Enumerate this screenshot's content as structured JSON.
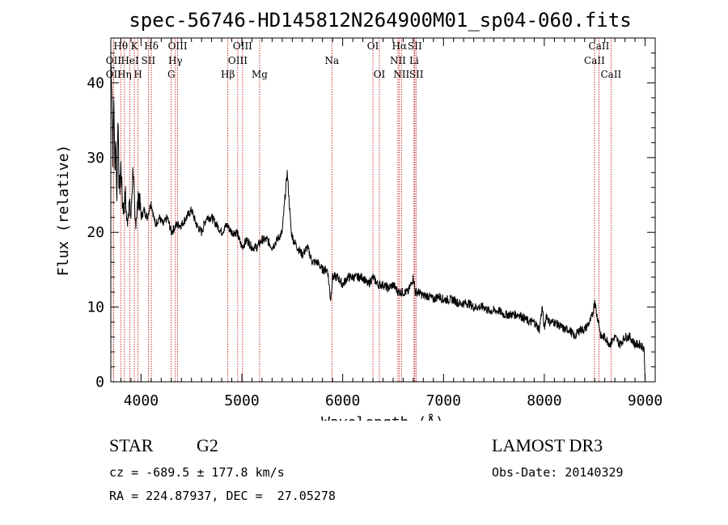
{
  "chart_data": {
    "type": "line",
    "title": "spec-56746-HD145812N264900M01_sp04-060.fits",
    "xlabel": "Wavelength (Å)",
    "ylabel": "Flux (relative)",
    "xlim": [
      3700,
      9100
    ],
    "ylim": [
      0,
      46
    ],
    "xticks": [
      4000,
      5000,
      6000,
      7000,
      8000,
      9000
    ],
    "yticks": [
      0,
      10,
      20,
      30,
      40
    ],
    "spectral_lines": [
      {
        "x": 3727,
        "label": "OII",
        "row": 1
      },
      {
        "x": 3727,
        "label": "OII",
        "row": 2
      },
      {
        "x": 3798,
        "label": "Hθ",
        "row": 0
      },
      {
        "x": 3835,
        "label": "Hη",
        "row": 2
      },
      {
        "x": 3889,
        "label": "HeI",
        "row": 1
      },
      {
        "x": 3934,
        "label": "K",
        "row": 0
      },
      {
        "x": 3970,
        "label": "H",
        "row": 2
      },
      {
        "x": 4072,
        "label": "SII",
        "row": 1
      },
      {
        "x": 4102,
        "label": "Hδ",
        "row": 0
      },
      {
        "x": 4300,
        "label": "G",
        "row": 2
      },
      {
        "x": 4340,
        "label": "Hγ",
        "row": 1
      },
      {
        "x": 4363,
        "label": "OIII",
        "row": 0
      },
      {
        "x": 4861,
        "label": "Hβ",
        "row": 2
      },
      {
        "x": 4959,
        "label": "OIII",
        "row": 1
      },
      {
        "x": 5007,
        "label": "OIII",
        "row": 0
      },
      {
        "x": 5176,
        "label": "Mg",
        "row": 2
      },
      {
        "x": 5893,
        "label": "Na",
        "row": 1
      },
      {
        "x": 6300,
        "label": "OI",
        "row": 0
      },
      {
        "x": 6364,
        "label": "OI",
        "row": 2
      },
      {
        "x": 6548,
        "label": "NII",
        "row": 1
      },
      {
        "x": 6563,
        "label": "Hα",
        "row": 0
      },
      {
        "x": 6583,
        "label": "NII",
        "row": 2
      },
      {
        "x": 6708,
        "label": "Li",
        "row": 1
      },
      {
        "x": 6716,
        "label": "SII",
        "row": 0
      },
      {
        "x": 6731,
        "label": "SII",
        "row": 2
      },
      {
        "x": 8498,
        "label": "CaII",
        "row": 1
      },
      {
        "x": 8542,
        "label": "CaII",
        "row": 0
      },
      {
        "x": 8662,
        "label": "CaII",
        "row": 2
      }
    ],
    "series": [
      {
        "x": [
          3700,
          3710,
          3720,
          3730,
          3740,
          3750,
          3760,
          3770,
          3780,
          3790,
          3800,
          3815,
          3830,
          3845,
          3860,
          3880,
          3900,
          3920,
          3940,
          3960,
          3980,
          4000,
          4030,
          4060,
          4100,
          4140,
          4180,
          4220,
          4260,
          4300,
          4350,
          4400,
          4450,
          4500,
          4550,
          4600,
          4650,
          4700,
          4750,
          4800,
          4850,
          4900,
          4950,
          5000,
          5050,
          5100,
          5150,
          5200,
          5250,
          5300,
          5350,
          5400,
          5430,
          5450,
          5470,
          5490,
          5510,
          5550,
          5600,
          5650,
          5700,
          5750,
          5800,
          5850,
          5880,
          5900,
          5950,
          6000,
          6050,
          6100,
          6150,
          6200,
          6250,
          6300,
          6350,
          6400,
          6450,
          6500,
          6550,
          6600,
          6650,
          6700,
          6720,
          6750,
          6800,
          6850,
          6900,
          6950,
          7000,
          7050,
          7100,
          7150,
          7200,
          7250,
          7300,
          7350,
          7400,
          7450,
          7500,
          7550,
          7600,
          7650,
          7700,
          7750,
          7800,
          7850,
          7900,
          7950,
          7980,
          8000,
          8020,
          8050,
          8100,
          8150,
          8200,
          8250,
          8300,
          8350,
          8400,
          8450,
          8480,
          8500,
          8520,
          8540,
          8560,
          8600,
          8650,
          8700,
          8750,
          8800,
          8850,
          8900,
          8950,
          8990,
          9000
        ],
        "y": [
          43,
          40,
          30,
          38,
          28,
          33,
          24,
          36,
          27,
          26,
          29,
          24,
          23,
          25,
          21,
          24,
          22,
          29,
          21,
          23,
          25,
          22,
          23,
          22,
          24,
          21,
          22,
          21,
          22,
          20,
          21,
          21,
          22,
          23,
          21,
          20,
          22,
          22,
          21,
          20,
          21,
          20,
          20,
          18,
          19,
          18,
          18,
          19,
          19,
          18,
          19,
          20,
          25,
          28,
          24,
          20,
          19,
          18,
          17,
          18,
          16,
          16,
          15,
          15,
          11,
          14,
          14,
          13,
          14,
          14,
          14,
          14,
          13,
          14,
          13,
          13,
          12.5,
          13,
          12,
          12,
          12,
          14,
          12,
          12,
          11.5,
          11.5,
          11,
          11.5,
          11,
          11,
          11,
          10.5,
          10.5,
          10.5,
          10,
          10,
          10,
          9.5,
          9.5,
          9.5,
          9,
          9,
          9,
          9,
          8.5,
          8,
          8,
          7,
          10,
          7,
          9,
          8,
          8,
          7.5,
          7,
          7,
          6,
          7,
          7,
          8,
          9,
          11,
          9,
          8,
          6,
          6,
          5,
          6,
          5,
          6,
          6,
          5,
          5,
          4.5,
          0
        ]
      }
    ]
  },
  "info": {
    "object_class": "STAR",
    "subclass": "G2",
    "redshift": "cz = -689.5 ± 177.8 km/s",
    "coords": "RA = 224.87937, DEC =  27.05278",
    "survey": "LAMOST DR3",
    "obs_date": "Obs-Date: 20140329"
  }
}
